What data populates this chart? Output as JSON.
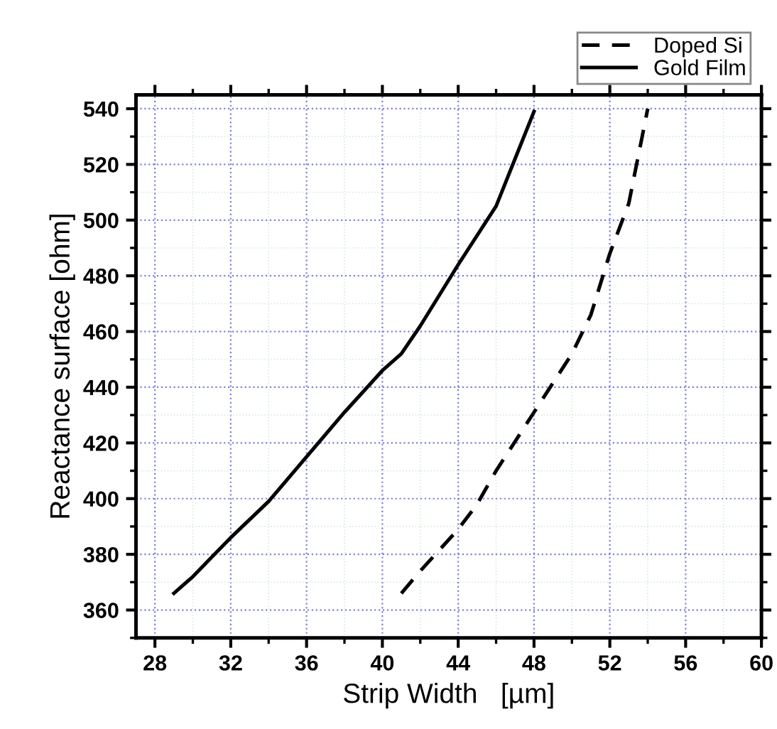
{
  "chart_data": {
    "type": "line",
    "xlabel": "Strip Width   [µm]",
    "ylabel": "Reactance surface [ohm]",
    "xlim": [
      27,
      60
    ],
    "ylim": [
      350,
      545
    ],
    "xticks": [
      28,
      32,
      36,
      40,
      44,
      48,
      52,
      56,
      60
    ],
    "yticks": [
      360,
      380,
      400,
      420,
      440,
      460,
      480,
      500,
      520,
      540
    ],
    "grid": true,
    "legend": "top right",
    "series": [
      {
        "name": "Doped Si",
        "color": "#000000",
        "line_style": "dashed",
        "x": [
          41,
          42,
          44,
          45,
          46,
          48,
          50,
          51,
          52,
          53,
          54
        ],
        "values": [
          366,
          374,
          389,
          398,
          410,
          431,
          452,
          466,
          488,
          506,
          540
        ]
      },
      {
        "name": "Gold Film",
        "color": "#000000",
        "line_style": "solid",
        "x": [
          29,
          30,
          32,
          34,
          36,
          38,
          40,
          41,
          42,
          44,
          46,
          47,
          48
        ],
        "values": [
          366,
          372,
          386,
          399,
          415,
          431,
          446,
          452,
          462,
          484,
          505,
          522,
          539
        ]
      }
    ]
  }
}
